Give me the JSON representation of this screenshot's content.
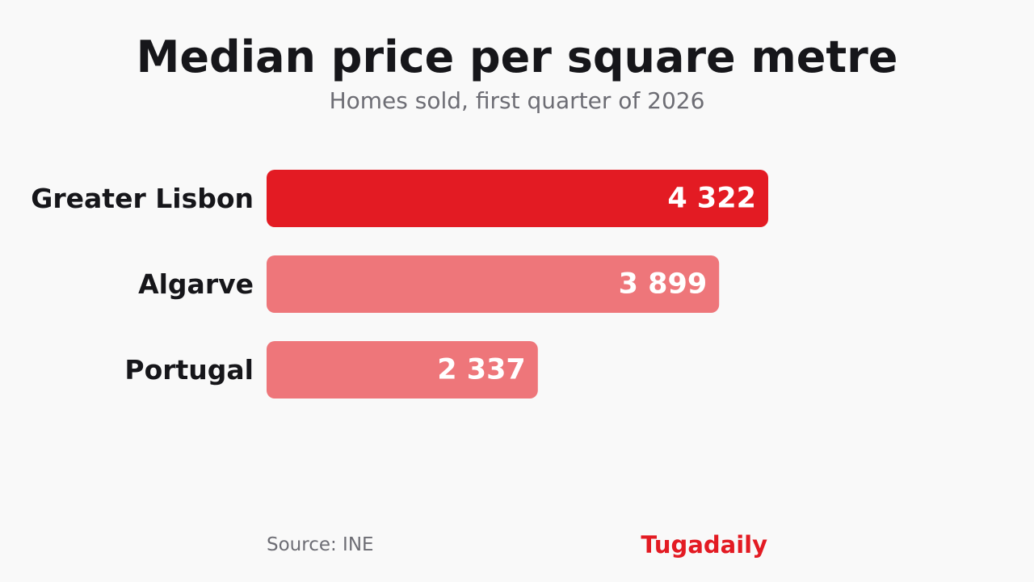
{
  "header": {
    "title": "Median price per square metre",
    "subtitle": "Homes sold, first quarter of 2026"
  },
  "chart_data": {
    "type": "bar",
    "orientation": "horizontal",
    "title": "Median price per square metre",
    "subtitle": "Homes sold, first quarter of 2026",
    "categories": [
      "Greater Lisbon",
      "Algarve",
      "Portugal"
    ],
    "values": [
      4322,
      3899,
      2337
    ],
    "value_labels": [
      "4 322",
      "3 899",
      "2 337"
    ],
    "xlim": [
      0,
      4322
    ],
    "grid": false,
    "xlabel": "",
    "ylabel": "",
    "colors": {
      "highlight": "#e31b23",
      "default": "#ee767a",
      "label_text": "#16161a",
      "value_text": "#ffffff"
    }
  },
  "footer": {
    "source": "Source: INE",
    "brand": "Tugadaily"
  }
}
